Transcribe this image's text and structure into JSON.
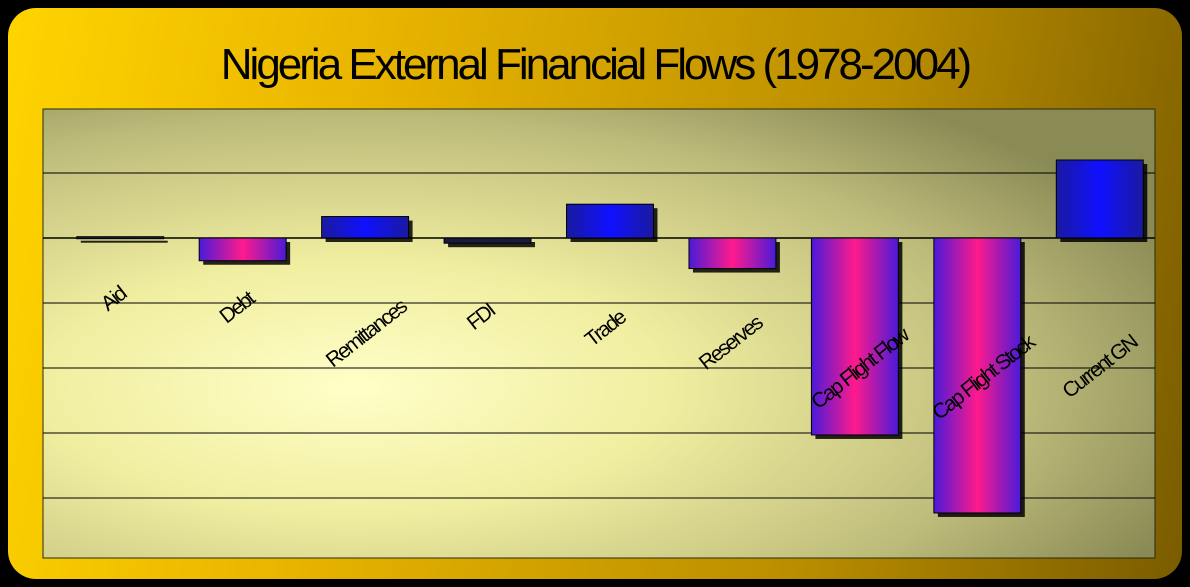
{
  "colors": {
    "frame": "#000000",
    "panel_light": "#ffd400",
    "panel_dark": "#7a5c00",
    "plot_glow": "#ffffc0",
    "plot_edge": "#8a8a55",
    "bar_blue": "#1010ff",
    "bar_pink": "#ff1a8c",
    "gridline": "#000000"
  },
  "chart_data": {
    "type": "bar",
    "title": "Nigeria External Financial Flows (1978-2004)",
    "xlabel": "",
    "ylabel": "",
    "grid": true,
    "legend": "none",
    "y_tick_labels_shown": false,
    "ylim": [
      -5,
      1.5
    ],
    "gridlines": [
      -4,
      -3,
      -2,
      -1,
      0,
      1
    ],
    "categories": [
      "Aid",
      "Debt",
      "Remittances",
      "FDI",
      "Trade",
      "Reserves",
      "Cap Flight Flow",
      "Cap Flight Stock",
      "Current GN"
    ],
    "values": [
      0.02,
      -0.35,
      0.33,
      -0.08,
      0.52,
      -0.47,
      -3.03,
      -4.23,
      1.2
    ],
    "bar_styles": [
      "dark",
      "pink-gradient",
      "blue",
      "dark",
      "blue",
      "pink-gradient",
      "pink-gradient",
      "pink-gradient",
      "blue"
    ]
  }
}
